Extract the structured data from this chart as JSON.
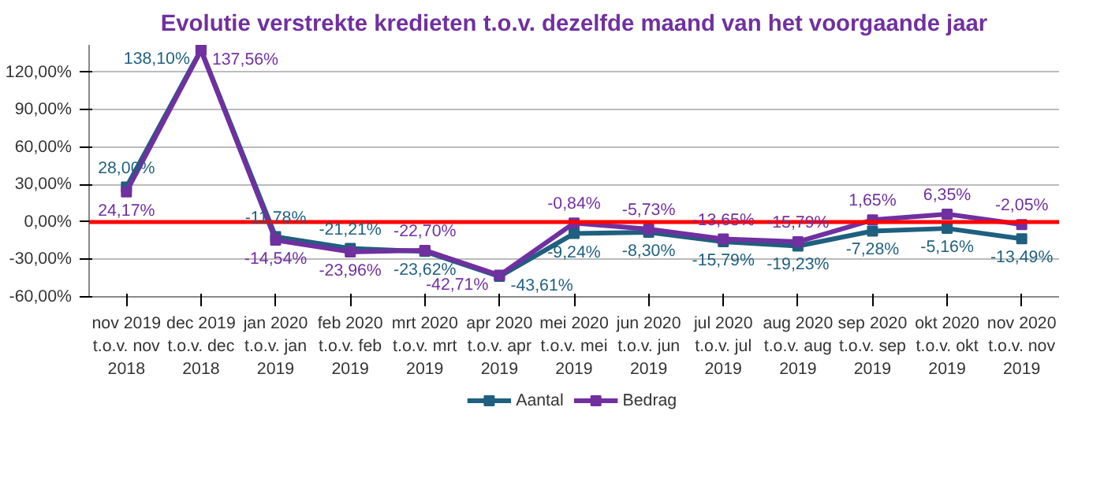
{
  "chart_data": {
    "type": "line",
    "title": "Evolutie verstrekte kredieten t.o.v. dezelfde maand van het voorgaande jaar",
    "categories": [
      "nov 2019\nt.o.v. nov\n2018",
      "dec 2019\nt.o.v. dec\n2018",
      "jan 2020\nt.o.v. jan\n2019",
      "feb 2020\nt.o.v. feb\n2019",
      "mrt 2020\nt.o.v. mrt\n2019",
      "apr 2020\nt.o.v. apr\n2019",
      "mei 2020\nt.o.v. mei\n2019",
      "jun 2020\nt.o.v. jun\n2019",
      "jul 2020\nt.o.v. jul\n2019",
      "aug 2020\nt.o.v. aug\n2019",
      "sep 2020\nt.o.v. sep\n2019",
      "okt 2020\nt.o.v. okt\n2019",
      "nov 2020\nt.o.v. nov\n2019"
    ],
    "series": [
      {
        "name": "Aantal",
        "color": "#1f5f7f",
        "values": [
          28.0,
          138.1,
          -11.78,
          -21.21,
          -23.62,
          -43.61,
          -9.24,
          -8.3,
          -15.79,
          -19.23,
          -7.28,
          -5.16,
          -13.49
        ],
        "value_labels": [
          "28,00%",
          "138,10%",
          "-11,78%",
          "-21,21%",
          "-23,62%",
          "-43,61%",
          "-9,24%",
          "-8,30%",
          "-15,79%",
          "-19,23%",
          "-7,28%",
          "-5,16%",
          "-13,49%"
        ]
      },
      {
        "name": "Bedrag",
        "color": "#7030a0",
        "values": [
          24.17,
          137.56,
          -14.54,
          -23.96,
          -22.7,
          -42.71,
          -0.84,
          -5.73,
          -13.65,
          -15.79,
          1.65,
          6.35,
          -2.05
        ],
        "value_labels": [
          "24,17%",
          "137,56%",
          "-14,54%",
          "-23,96%",
          "-22,70%",
          "-42,71%",
          "-0,84%",
          "-5,73%",
          "-13,65%",
          "-15,79%",
          "1,65%",
          "6,35%",
          "-2,05%"
        ]
      }
    ],
    "ylim": [
      -60,
      142
    ],
    "yticks": [
      {
        "value": -60,
        "label": "-60,00%"
      },
      {
        "value": -30,
        "label": "-30,00%"
      },
      {
        "value": 0,
        "label": "0,00%"
      },
      {
        "value": 30,
        "label": "30,00%"
      },
      {
        "value": 60,
        "label": "60,00%"
      },
      {
        "value": 90,
        "label": "90,00%"
      },
      {
        "value": 120,
        "label": "120,00%"
      }
    ],
    "ref_lines": [
      {
        "axis": "y",
        "value": 0,
        "color": "#ff0000"
      }
    ],
    "grid": "y",
    "legend": "bottom",
    "marker": "square",
    "line_style": "solid"
  }
}
